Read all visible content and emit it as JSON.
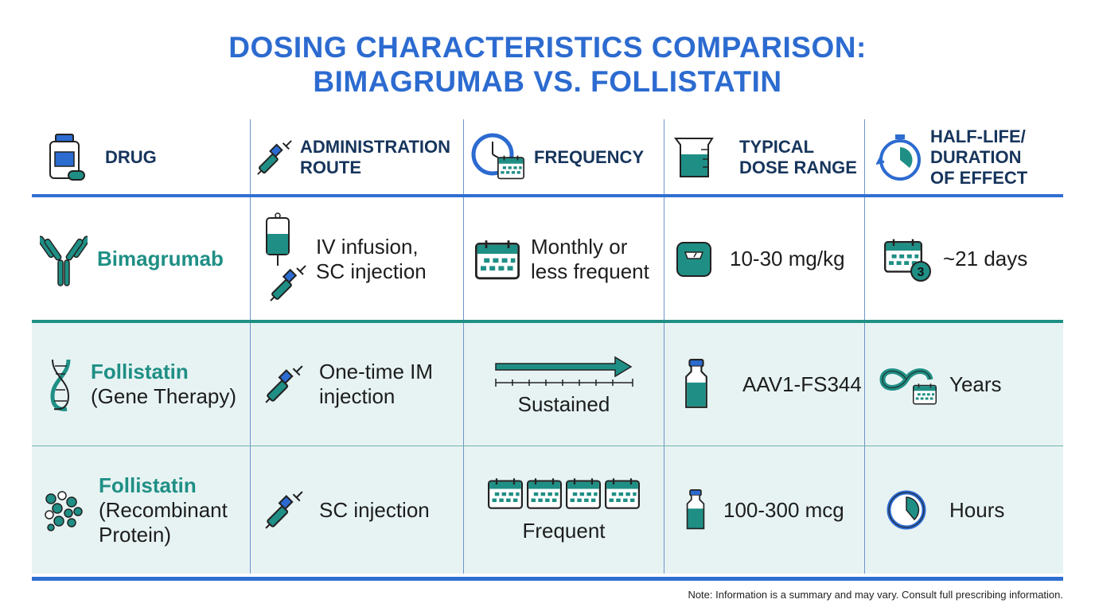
{
  "title": {
    "line1": "DOSING CHARACTERISTICS COMPARISON:",
    "line2": "BIMAGRUMAB VS. FOLLISTATIN"
  },
  "headers": [
    {
      "label": "DRUG",
      "icon": "medicine-bottle-icon"
    },
    {
      "label": "ADMINISTRATION ROUTE",
      "icon": "syringe-icon"
    },
    {
      "label": "FREQUENCY",
      "icon": "clock-calendar-icon"
    },
    {
      "label": "TYPICAL DOSE RANGE",
      "icon": "measuring-cup-icon"
    },
    {
      "label": "HALF-LIFE/ DURATION OF EFFECT",
      "icon": "stopwatch-icon"
    }
  ],
  "rows": [
    {
      "drug": "Bimagrumab",
      "drug_sub": "",
      "route": "IV infusion, SC injection",
      "frequency": "Monthly or less frequent",
      "dose": "10-30 mg/kg",
      "duration": "~21 days",
      "duration_badge": "3"
    },
    {
      "drug": "Follistatin",
      "drug_sub": "(Gene Therapy)",
      "route": "One-time IM injection",
      "frequency": "Sustained",
      "dose": "AAV1-FS344",
      "duration": "Years"
    },
    {
      "drug": "Follistatin",
      "drug_sub": "(Recombinant Protein)",
      "route": "SC injection",
      "frequency": "Frequent",
      "dose": "100-300 mcg",
      "duration": "Hours"
    }
  ],
  "note": "Note: Information is a summary and may vary. Consult full prescribing information.",
  "colors": {
    "title": "#2c6bd0",
    "header": "#17355c",
    "teal": "#1f8f85",
    "row_bg": "#e7f3f3",
    "rule_blue": "#2f6fd1"
  }
}
